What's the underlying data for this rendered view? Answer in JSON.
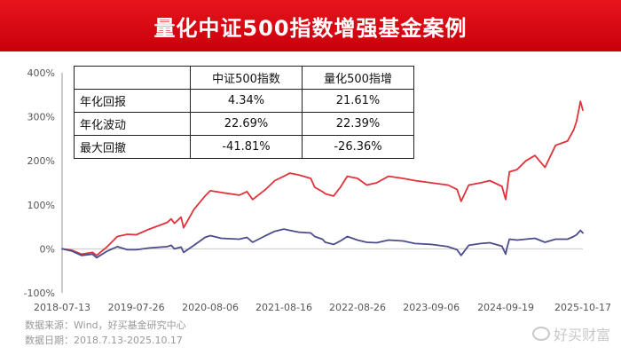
{
  "banner": {
    "title": "量化中证500指数增强基金案例"
  },
  "table": {
    "headers": [
      "",
      "中证500指数",
      "量化500指增"
    ],
    "rows": [
      [
        "年化回报",
        "4.34%",
        "21.61%"
      ],
      [
        "年化波动",
        "22.69%",
        "22.39%"
      ],
      [
        "最大回撤",
        "-41.81%",
        "-26.36%"
      ]
    ]
  },
  "footer": {
    "source": "数据来源：Wind，好买基金研究中心",
    "date": "数据日期：2018.7.13-2025.10.17"
  },
  "watermark": {
    "text": "好买财富",
    "icon": "weibo-icon"
  },
  "chart_data": {
    "type": "line",
    "title": "",
    "xlabel": "",
    "ylabel": "",
    "y_tick_labels": [
      "400%",
      "300%",
      "200%",
      "100%",
      "0%",
      "-100%"
    ],
    "y_ticks": [
      400,
      300,
      200,
      100,
      0,
      -100
    ],
    "ylim": [
      -100,
      400
    ],
    "x_tick_labels": [
      "2018-07-13",
      "2019-07-26",
      "2020-08-06",
      "2021-08-16",
      "2022-08-26",
      "2023-09-06",
      "2024-09-19",
      "2025-10-17"
    ],
    "xlim": [
      "2018-07-13",
      "2025-10-17"
    ],
    "grid": false,
    "legend": "none",
    "series": [
      {
        "name": "量化500指增",
        "color": "#e0323a",
        "x": [
          "2018-07-13",
          "2018-09-01",
          "2018-10-20",
          "2018-12-15",
          "2019-01-05",
          "2019-02-28",
          "2019-04-20",
          "2019-06-10",
          "2019-07-26",
          "2019-10-01",
          "2019-12-31",
          "2020-01-20",
          "2020-02-05",
          "2020-03-10",
          "2020-03-23",
          "2020-05-15",
          "2020-07-10",
          "2020-08-06",
          "2020-10-01",
          "2020-12-31",
          "2021-02-09",
          "2021-03-10",
          "2021-05-15",
          "2021-07-01",
          "2021-08-16",
          "2021-09-15",
          "2021-10-31",
          "2021-12-31",
          "2022-01-20",
          "2022-02-28",
          "2022-03-15",
          "2022-04-26",
          "2022-05-31",
          "2022-07-05",
          "2022-08-26",
          "2022-10-12",
          "2022-12-01",
          "2023-01-31",
          "2023-04-15",
          "2023-06-15",
          "2023-09-06",
          "2023-11-30",
          "2024-01-15",
          "2024-02-05",
          "2024-03-15",
          "2024-05-15",
          "2024-06-30",
          "2024-08-31",
          "2024-09-19",
          "2024-09-24",
          "2024-10-08",
          "2024-11-15",
          "2024-12-31",
          "2025-02-15",
          "2025-04-07",
          "2025-05-31",
          "2025-07-31",
          "2025-08-31",
          "2025-09-15",
          "2025-10-05",
          "2025-10-17"
        ],
        "values": [
          0,
          -3,
          -12,
          -8,
          -15,
          5,
          28,
          33,
          32,
          45,
          60,
          68,
          58,
          72,
          48,
          90,
          120,
          132,
          128,
          122,
          130,
          112,
          135,
          155,
          165,
          172,
          168,
          160,
          140,
          130,
          125,
          120,
          140,
          165,
          160,
          145,
          150,
          165,
          160,
          155,
          150,
          145,
          135,
          108,
          145,
          150,
          155,
          142,
          112,
          130,
          175,
          180,
          200,
          212,
          185,
          235,
          245,
          270,
          290,
          335,
          315
        ]
      },
      {
        "name": "中证500指数",
        "color": "#4b4d8c",
        "x": [
          "2018-07-13",
          "2018-09-01",
          "2018-10-20",
          "2018-12-15",
          "2019-01-05",
          "2019-02-28",
          "2019-04-20",
          "2019-06-10",
          "2019-07-26",
          "2019-10-01",
          "2019-12-31",
          "2020-01-20",
          "2020-02-05",
          "2020-03-10",
          "2020-03-23",
          "2020-05-15",
          "2020-07-10",
          "2020-08-06",
          "2020-10-01",
          "2020-12-31",
          "2021-02-09",
          "2021-03-10",
          "2021-05-15",
          "2021-07-01",
          "2021-08-16",
          "2021-09-15",
          "2021-10-31",
          "2021-12-31",
          "2022-01-20",
          "2022-02-28",
          "2022-03-15",
          "2022-04-26",
          "2022-05-31",
          "2022-07-05",
          "2022-08-26",
          "2022-10-12",
          "2022-12-01",
          "2023-01-31",
          "2023-04-15",
          "2023-06-15",
          "2023-09-06",
          "2023-11-30",
          "2024-01-15",
          "2024-02-05",
          "2024-03-15",
          "2024-05-15",
          "2024-06-30",
          "2024-08-31",
          "2024-09-19",
          "2024-09-24",
          "2024-10-08",
          "2024-11-15",
          "2024-12-31",
          "2025-02-15",
          "2025-04-07",
          "2025-05-31",
          "2025-07-31",
          "2025-08-31",
          "2025-09-15",
          "2025-10-05",
          "2025-10-17"
        ],
        "values": [
          0,
          -5,
          -15,
          -12,
          -20,
          -5,
          5,
          -2,
          -2,
          2,
          5,
          8,
          0,
          4,
          -8,
          8,
          26,
          30,
          24,
          22,
          26,
          15,
          30,
          40,
          45,
          42,
          38,
          36,
          28,
          22,
          15,
          10,
          18,
          28,
          20,
          15,
          14,
          20,
          18,
          12,
          10,
          5,
          -2,
          -15,
          8,
          12,
          14,
          6,
          -12,
          0,
          22,
          20,
          22,
          24,
          15,
          22,
          22,
          28,
          32,
          42,
          36
        ]
      }
    ]
  }
}
